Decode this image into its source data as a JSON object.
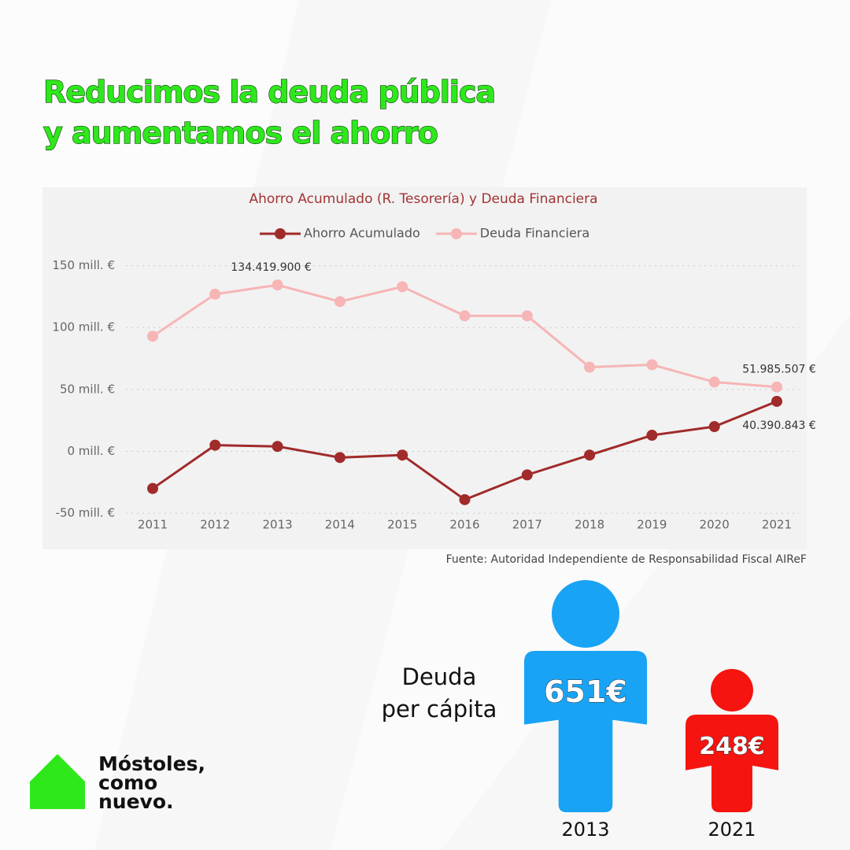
{
  "header": {
    "title_lines": [
      "Reducimos la deuda pública",
      "y aumentamos el ahorro"
    ]
  },
  "chart_data": {
    "type": "line",
    "title": "Ahorro Acumulado (R. Tesorería) y Deuda Financiera",
    "categories": [
      "2011",
      "2012",
      "2013",
      "2014",
      "2015",
      "2016",
      "2017",
      "2018",
      "2019",
      "2020",
      "2021"
    ],
    "series": [
      {
        "name": "Ahorro Acumulado",
        "color": "#a12a2a",
        "values": [
          -30000000,
          5000000,
          4000000,
          -5000000,
          -3000000,
          -39000000,
          -19000000,
          -3000000,
          13000000,
          20000000,
          40390843
        ],
        "value_labels": [
          null,
          null,
          null,
          null,
          null,
          null,
          null,
          null,
          null,
          null,
          "40.390.843 €"
        ]
      },
      {
        "name": "Deuda Financiera",
        "color": "#f7b5b5",
        "values": [
          93000000,
          127000000,
          134419900,
          121000000,
          133000000,
          109500000,
          109500000,
          68000000,
          70000000,
          56000000,
          51985507
        ],
        "value_labels": [
          null,
          null,
          "134.419.900 €",
          null,
          null,
          null,
          null,
          null,
          null,
          null,
          "51.985.507 €"
        ]
      }
    ],
    "ylim": [
      -55000000,
      158000000
    ],
    "yticks": [
      {
        "value": -50000000,
        "label": "-50 mill. €"
      },
      {
        "value": 0,
        "label": "0 mill. €"
      },
      {
        "value": 50000000,
        "label": "50 mill. €"
      },
      {
        "value": 100000000,
        "label": "100 mill. €"
      },
      {
        "value": 150000000,
        "label": "150 mill. €"
      }
    ],
    "grid": true,
    "legend": "top",
    "source": "Fuente: Autoridad Independiente de Responsabilidad Fiscal AIReF"
  },
  "per_capita": {
    "label_lines": [
      "Deuda",
      "per cápita"
    ],
    "items": [
      {
        "year": "2013",
        "amount": "651€",
        "color": "#18a3f5"
      },
      {
        "year": "2021",
        "amount": "248€",
        "color": "#f5140f"
      }
    ]
  },
  "logo": {
    "lines": [
      "Móstoles,",
      "como",
      "nuevo."
    ]
  }
}
